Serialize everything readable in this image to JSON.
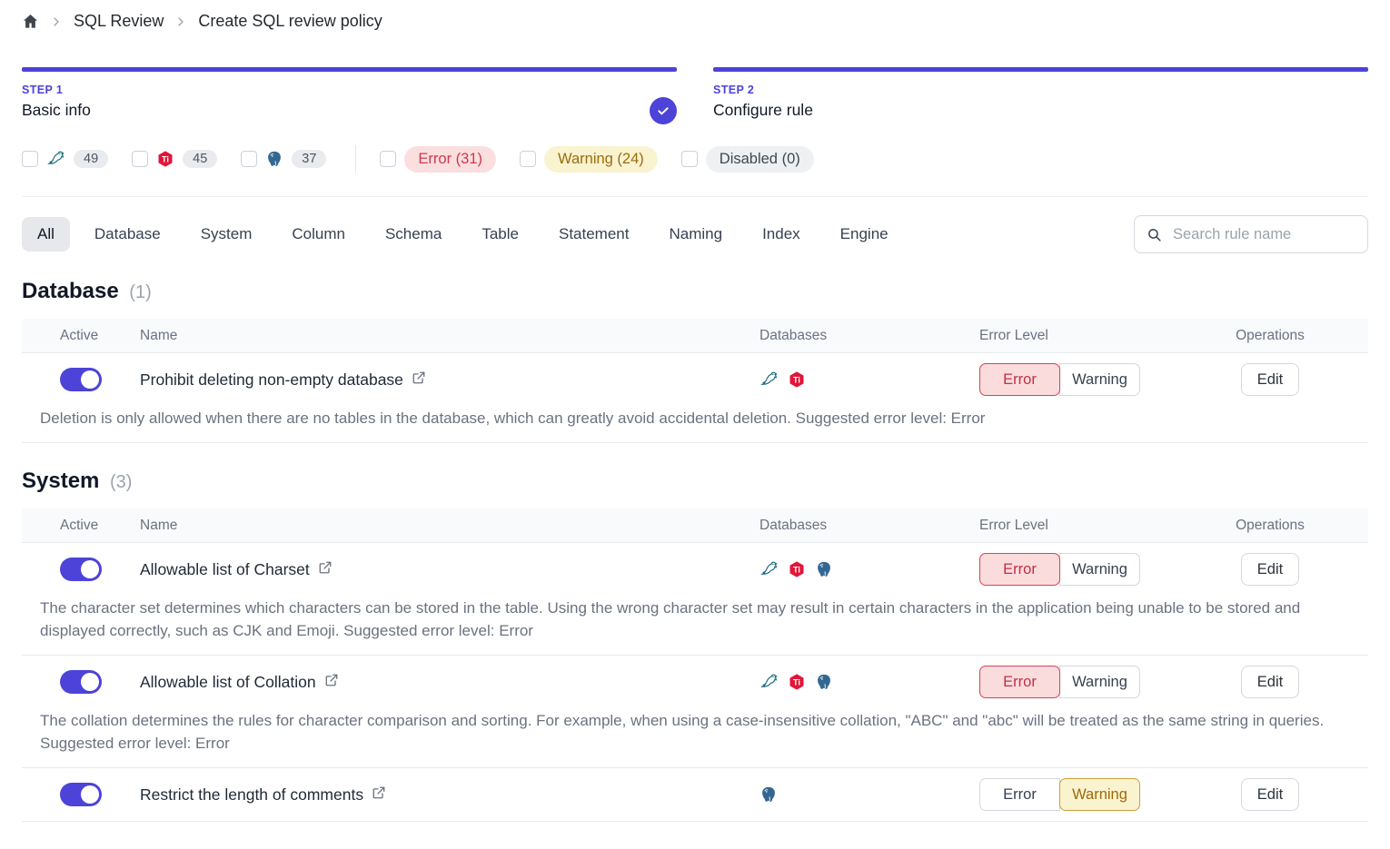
{
  "breadcrumb": {
    "home_icon": "home-icon",
    "items": [
      "SQL Review",
      "Create SQL review policy"
    ]
  },
  "steps": [
    {
      "label": "STEP 1",
      "title": "Basic info",
      "completed": true
    },
    {
      "label": "STEP 2",
      "title": "Configure rule",
      "completed": false
    }
  ],
  "filters": {
    "engines": [
      {
        "name": "mysql",
        "count": "49"
      },
      {
        "name": "tidb",
        "count": "45"
      },
      {
        "name": "postgres",
        "count": "37"
      }
    ],
    "levels": [
      {
        "type": "error",
        "label": "Error (31)"
      },
      {
        "type": "warning",
        "label": "Warning (24)"
      },
      {
        "type": "disabled",
        "label": "Disabled (0)"
      }
    ]
  },
  "tabs": {
    "items": [
      "All",
      "Database",
      "System",
      "Column",
      "Schema",
      "Table",
      "Statement",
      "Naming",
      "Index",
      "Engine"
    ],
    "active": "All"
  },
  "search": {
    "placeholder": "Search rule name"
  },
  "table": {
    "headers": [
      "Active",
      "Name",
      "Databases",
      "Error Level",
      "Operations"
    ],
    "level_buttons": {
      "error": "Error",
      "warning": "Warning"
    },
    "edit_label": "Edit"
  },
  "sections": [
    {
      "title": "Database",
      "count": "(1)",
      "rules": [
        {
          "name": "Prohibit deleting non-empty database",
          "engines": [
            "mysql",
            "tidb"
          ],
          "active": true,
          "level": "error",
          "description": "Deletion is only allowed when there are no tables in the database, which can greatly avoid accidental deletion. Suggested error level: Error"
        }
      ]
    },
    {
      "title": "System",
      "count": "(3)",
      "rules": [
        {
          "name": "Allowable list of Charset",
          "engines": [
            "mysql",
            "tidb",
            "postgres"
          ],
          "active": true,
          "level": "error",
          "description": "The character set determines which characters can be stored in the table. Using the wrong character set may result in certain characters in the application being unable to be stored and displayed correctly, such as CJK and Emoji. Suggested error level: Error"
        },
        {
          "name": "Allowable list of Collation",
          "engines": [
            "mysql",
            "tidb",
            "postgres"
          ],
          "active": true,
          "level": "error",
          "description": "The collation determines the rules for character comparison and sorting. For example, when using a case-insensitive collation, \"ABC\" and \"abc\" will be treated as the same string in queries. Suggested error level: Error"
        },
        {
          "name": "Restrict the length of comments",
          "engines": [
            "postgres"
          ],
          "active": true,
          "level": "warning",
          "description": ""
        }
      ]
    }
  ],
  "colors": {
    "accent": "#4d43d8",
    "error_text": "#c03049",
    "error_bg": "#fbdcdc",
    "warning_text": "#9c6b07",
    "warning_bg": "#faf3d0",
    "disabled_bg": "#eef0f2",
    "table_header_bg": "#f8fafc",
    "border": "#e8eaed",
    "mysql_icon": "#17697f",
    "tidb_icon": "#e0173a",
    "postgres_icon": "#336791"
  }
}
